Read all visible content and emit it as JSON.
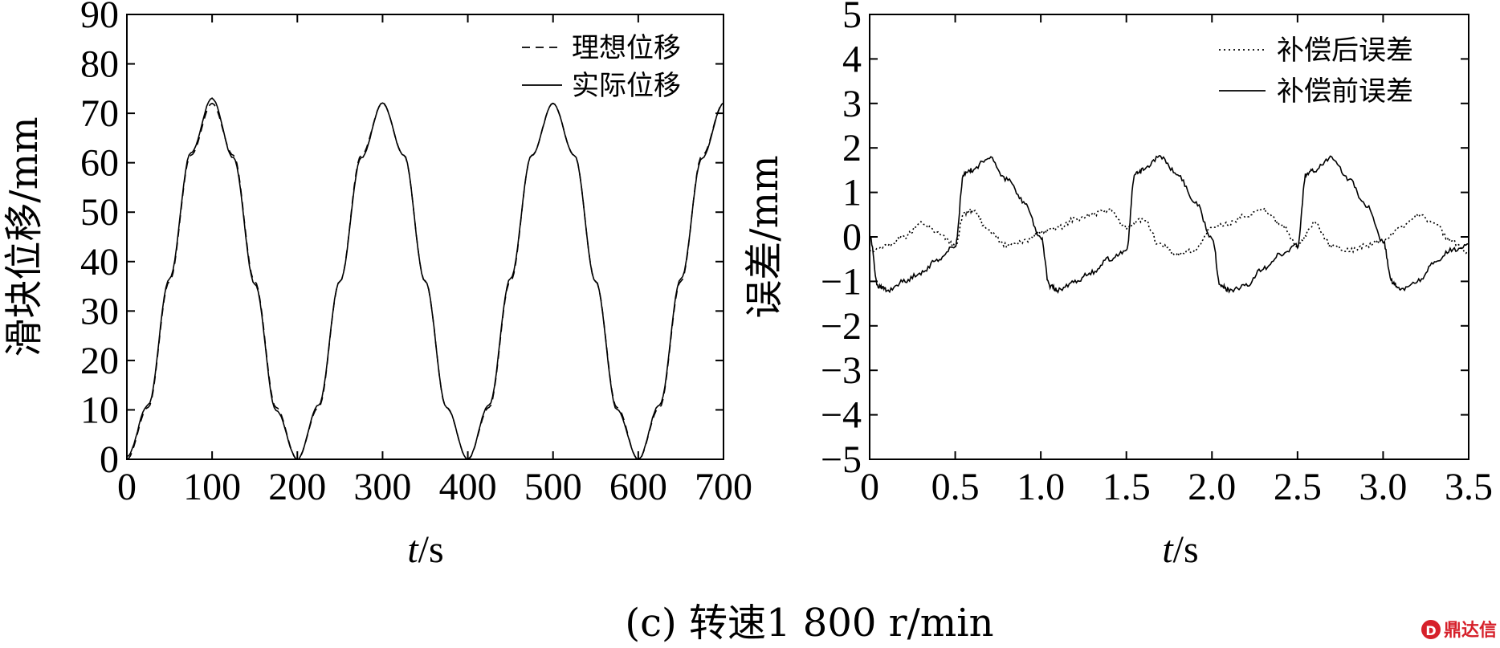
{
  "caption": "(c) 转速1 800 r/min",
  "watermark": "鼎达信",
  "chart_data": [
    {
      "type": "line",
      "ylabel": "滑块位移/mm",
      "xlabel_italic": "t",
      "xlabel_unit": "/s",
      "xlim": [
        0,
        700
      ],
      "ylim": [
        0,
        90
      ],
      "xticks": [
        "0",
        "100",
        "200",
        "300",
        "400",
        "500",
        "600",
        "700"
      ],
      "yticks": [
        "0",
        "10",
        "20",
        "30",
        "40",
        "50",
        "60",
        "70",
        "80",
        "90"
      ],
      "legend_position": "top-right",
      "series": [
        {
          "name": "理想位移",
          "style": "dashed",
          "color": "#000000",
          "x": [
            0,
            25,
            50,
            75,
            100,
            125,
            150,
            175,
            200,
            225,
            250,
            275,
            300,
            325,
            350,
            375,
            400,
            425,
            450,
            475,
            500,
            525,
            550,
            575,
            600,
            625,
            650,
            675,
            700
          ],
          "y": [
            0,
            10.5,
            36,
            61.5,
            72,
            61.5,
            36,
            10.5,
            0,
            10.5,
            36,
            61.5,
            72,
            61.5,
            36,
            10.5,
            0,
            10.5,
            36,
            61.5,
            72,
            61.5,
            36,
            10.5,
            0,
            10.5,
            36,
            61.5,
            72
          ]
        },
        {
          "name": "实际位移",
          "style": "solid",
          "color": "#000000",
          "x": [
            0,
            25,
            50,
            75,
            100,
            125,
            150,
            175,
            200,
            225,
            250,
            275,
            300,
            325,
            350,
            375,
            400,
            425,
            450,
            475,
            500,
            525,
            550,
            575,
            600,
            625,
            650,
            675,
            700
          ],
          "y": [
            0.5,
            11,
            36.5,
            62,
            73,
            61,
            35.5,
            10,
            0,
            11,
            36,
            61,
            72,
            61.5,
            36,
            10.5,
            0,
            11,
            36.5,
            61.5,
            72,
            61.5,
            36,
            10,
            0,
            11,
            36.5,
            61,
            72
          ]
        }
      ]
    },
    {
      "type": "line",
      "ylabel": "误差/mm",
      "xlabel_italic": "t",
      "xlabel_unit": "/s",
      "xlim": [
        0,
        3.5
      ],
      "ylim": [
        -5,
        5
      ],
      "xticks": [
        "0",
        "0.5",
        "1.0",
        "1.5",
        "2.0",
        "2.5",
        "3.0",
        "3.5"
      ],
      "yticks": [
        "5",
        "4",
        "3",
        "2",
        "1",
        "0",
        "−1",
        "−2",
        "−3",
        "−4",
        "−5"
      ],
      "legend_position": "top-right",
      "series": [
        {
          "name": "补偿后误差",
          "style": "dotted",
          "color": "#000000",
          "x": [
            0,
            0.1,
            0.2,
            0.3,
            0.4,
            0.5,
            0.55,
            0.6,
            0.7,
            0.8,
            0.9,
            1.0,
            1.1,
            1.2,
            1.3,
            1.4,
            1.5,
            1.6,
            1.7,
            1.8,
            1.9,
            2.0,
            2.1,
            2.2,
            2.3,
            2.4,
            2.5,
            2.6,
            2.7,
            2.8,
            2.9,
            3.0,
            3.1,
            3.2,
            3.3,
            3.4,
            3.5
          ],
          "y": [
            -0.3,
            -0.2,
            0.0,
            0.3,
            0.1,
            -0.2,
            0.5,
            0.6,
            0.1,
            -0.2,
            -0.1,
            0.1,
            0.2,
            0.4,
            0.5,
            0.6,
            0.2,
            0.4,
            -0.2,
            -0.4,
            -0.3,
            0.2,
            0.3,
            0.5,
            0.6,
            0.3,
            -0.2,
            0.3,
            -0.2,
            -0.3,
            -0.2,
            -0.1,
            0.2,
            0.5,
            0.3,
            -0.1,
            -0.4
          ]
        },
        {
          "name": "补偿前误差",
          "style": "solid",
          "color": "#000000",
          "x": [
            0,
            0.05,
            0.1,
            0.2,
            0.3,
            0.4,
            0.5,
            0.55,
            0.6,
            0.7,
            0.8,
            0.9,
            1.0,
            1.05,
            1.1,
            1.2,
            1.3,
            1.4,
            1.5,
            1.55,
            1.6,
            1.7,
            1.8,
            1.9,
            2.0,
            2.05,
            2.1,
            2.2,
            2.3,
            2.4,
            2.5,
            2.55,
            2.6,
            2.7,
            2.8,
            2.9,
            3.0,
            3.05,
            3.1,
            3.2,
            3.3,
            3.4,
            3.5
          ],
          "y": [
            0,
            -1.1,
            -1.2,
            -1.0,
            -0.8,
            -0.5,
            -0.2,
            1.4,
            1.5,
            1.8,
            1.3,
            0.8,
            0.0,
            -1.1,
            -1.2,
            -1.0,
            -0.8,
            -0.5,
            -0.3,
            1.4,
            1.5,
            1.8,
            1.4,
            0.8,
            0.0,
            -1.1,
            -1.2,
            -1.1,
            -0.7,
            -0.4,
            -0.2,
            1.4,
            1.5,
            1.8,
            1.3,
            0.7,
            -0.1,
            -1.0,
            -1.2,
            -1.0,
            -0.6,
            -0.3,
            -0.2
          ]
        }
      ]
    }
  ]
}
